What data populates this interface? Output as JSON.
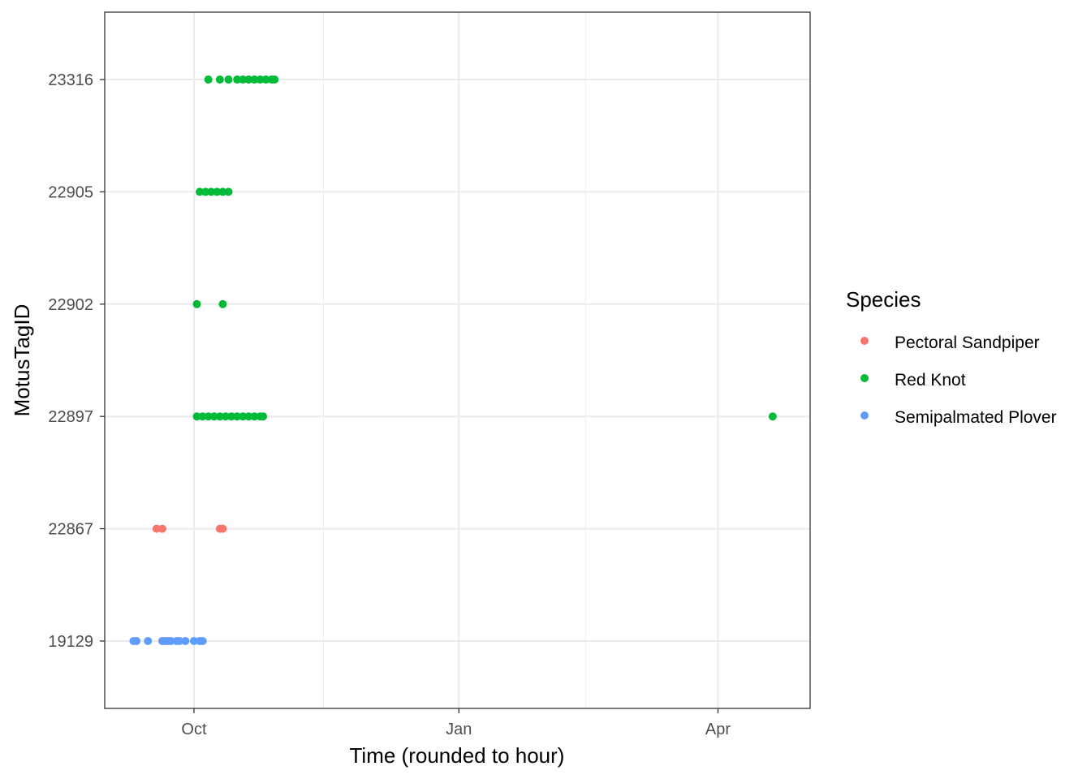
{
  "chart_data": {
    "type": "scatter",
    "title": "",
    "xlabel": "Time (rounded to hour)",
    "ylabel": "MotusTagID",
    "x_ticks": [
      {
        "label": "Oct",
        "date": "2016-10-01"
      },
      {
        "label": "Jan",
        "date": "2017-01-01"
      },
      {
        "label": "Apr",
        "date": "2017-04-01"
      }
    ],
    "x_minor_breaks": [
      "2016-11-15",
      "2017-02-14"
    ],
    "xlim": [
      "2016-08-31",
      "2017-05-03"
    ],
    "categories": [
      "19129",
      "22867",
      "22897",
      "22902",
      "22905",
      "23316"
    ],
    "grid": true,
    "legend": {
      "title": "Species",
      "position": "right"
    },
    "series": [
      {
        "name": "Pectoral Sandpiper",
        "color": "#F8766D",
        "points": [
          {
            "x": "2016-09-18",
            "y": "22867"
          },
          {
            "x": "2016-09-20",
            "y": "22867"
          },
          {
            "x": "2016-10-10",
            "y": "22867"
          },
          {
            "x": "2016-10-11",
            "y": "22867"
          }
        ]
      },
      {
        "name": "Red Knot",
        "color": "#00BA38",
        "points": [
          {
            "x": "2016-10-02",
            "y": "22897"
          },
          {
            "x": "2016-10-04",
            "y": "22897"
          },
          {
            "x": "2016-10-06",
            "y": "22897"
          },
          {
            "x": "2016-10-08",
            "y": "22897"
          },
          {
            "x": "2016-10-10",
            "y": "22897"
          },
          {
            "x": "2016-10-12",
            "y": "22897"
          },
          {
            "x": "2016-10-14",
            "y": "22897"
          },
          {
            "x": "2016-10-16",
            "y": "22897"
          },
          {
            "x": "2016-10-18",
            "y": "22897"
          },
          {
            "x": "2016-10-20",
            "y": "22897"
          },
          {
            "x": "2016-10-22",
            "y": "22897"
          },
          {
            "x": "2016-10-24",
            "y": "22897"
          },
          {
            "x": "2016-10-25",
            "y": "22897"
          },
          {
            "x": "2017-04-20",
            "y": "22897"
          },
          {
            "x": "2016-10-02",
            "y": "22902"
          },
          {
            "x": "2016-10-11",
            "y": "22902"
          },
          {
            "x": "2016-10-03",
            "y": "22905"
          },
          {
            "x": "2016-10-05",
            "y": "22905"
          },
          {
            "x": "2016-10-07",
            "y": "22905"
          },
          {
            "x": "2016-10-09",
            "y": "22905"
          },
          {
            "x": "2016-10-11",
            "y": "22905"
          },
          {
            "x": "2016-10-13",
            "y": "22905"
          },
          {
            "x": "2016-10-06",
            "y": "23316"
          },
          {
            "x": "2016-10-10",
            "y": "23316"
          },
          {
            "x": "2016-10-13",
            "y": "23316"
          },
          {
            "x": "2016-10-16",
            "y": "23316"
          },
          {
            "x": "2016-10-18",
            "y": "23316"
          },
          {
            "x": "2016-10-20",
            "y": "23316"
          },
          {
            "x": "2016-10-22",
            "y": "23316"
          },
          {
            "x": "2016-10-24",
            "y": "23316"
          },
          {
            "x": "2016-10-26",
            "y": "23316"
          },
          {
            "x": "2016-10-28",
            "y": "23316"
          },
          {
            "x": "2016-10-29",
            "y": "23316"
          }
        ]
      },
      {
        "name": "Semipalmated Plover",
        "color": "#619CFF",
        "points": [
          {
            "x": "2016-09-10",
            "y": "19129"
          },
          {
            "x": "2016-09-11",
            "y": "19129"
          },
          {
            "x": "2016-09-15",
            "y": "19129"
          },
          {
            "x": "2016-09-20",
            "y": "19129"
          },
          {
            "x": "2016-09-21",
            "y": "19129"
          },
          {
            "x": "2016-09-22",
            "y": "19129"
          },
          {
            "x": "2016-09-23",
            "y": "19129"
          },
          {
            "x": "2016-09-25",
            "y": "19129"
          },
          {
            "x": "2016-09-26",
            "y": "19129"
          },
          {
            "x": "2016-09-28",
            "y": "19129"
          },
          {
            "x": "2016-10-01",
            "y": "19129"
          },
          {
            "x": "2016-10-03",
            "y": "19129"
          },
          {
            "x": "2016-10-04",
            "y": "19129"
          }
        ]
      }
    ]
  }
}
